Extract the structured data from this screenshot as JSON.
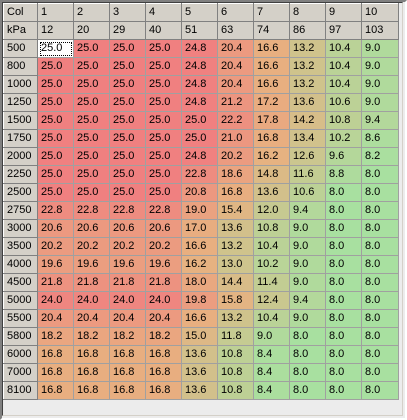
{
  "corner_labels": [
    "Col",
    "kPa"
  ],
  "columns": [
    {
      "col": "1",
      "kpa": "12"
    },
    {
      "col": "2",
      "kpa": "20"
    },
    {
      "col": "3",
      "kpa": "29"
    },
    {
      "col": "4",
      "kpa": "40"
    },
    {
      "col": "5",
      "kpa": "51"
    },
    {
      "col": "6",
      "kpa": "63"
    },
    {
      "col": "7",
      "kpa": "74"
    },
    {
      "col": "8",
      "kpa": "86"
    },
    {
      "col": "9",
      "kpa": "97"
    },
    {
      "col": "10",
      "kpa": "103"
    }
  ],
  "rows": [
    {
      "rpm": "500",
      "values": [
        "25.0",
        "25.0",
        "25.0",
        "25.0",
        "24.8",
        "20.4",
        "16.6",
        "13.2",
        "10.4",
        "9.0"
      ]
    },
    {
      "rpm": "800",
      "values": [
        "25.0",
        "25.0",
        "25.0",
        "25.0",
        "24.8",
        "20.4",
        "16.6",
        "13.2",
        "10.4",
        "9.0"
      ]
    },
    {
      "rpm": "1000",
      "values": [
        "25.0",
        "25.0",
        "25.0",
        "25.0",
        "24.8",
        "20.4",
        "16.6",
        "13.2",
        "10.4",
        "9.0"
      ]
    },
    {
      "rpm": "1250",
      "values": [
        "25.0",
        "25.0",
        "25.0",
        "25.0",
        "24.8",
        "21.2",
        "17.2",
        "13.6",
        "10.6",
        "9.0"
      ]
    },
    {
      "rpm": "1500",
      "values": [
        "25.0",
        "25.0",
        "25.0",
        "25.0",
        "25.0",
        "22.2",
        "17.8",
        "14.2",
        "10.8",
        "9.4"
      ]
    },
    {
      "rpm": "1750",
      "values": [
        "25.0",
        "25.0",
        "25.0",
        "25.0",
        "25.0",
        "21.0",
        "16.8",
        "13.4",
        "10.2",
        "8.6"
      ]
    },
    {
      "rpm": "2000",
      "values": [
        "25.0",
        "25.0",
        "25.0",
        "25.0",
        "24.8",
        "20.2",
        "16.2",
        "12.6",
        "9.6",
        "8.2"
      ]
    },
    {
      "rpm": "2250",
      "values": [
        "25.0",
        "25.0",
        "25.0",
        "25.0",
        "22.8",
        "18.6",
        "14.8",
        "11.6",
        "8.8",
        "8.0"
      ]
    },
    {
      "rpm": "2500",
      "values": [
        "25.0",
        "25.0",
        "25.0",
        "25.0",
        "20.8",
        "16.8",
        "13.6",
        "10.6",
        "8.0",
        "8.0"
      ]
    },
    {
      "rpm": "2750",
      "values": [
        "22.8",
        "22.8",
        "22.8",
        "22.8",
        "19.0",
        "15.4",
        "12.0",
        "9.4",
        "8.0",
        "8.0"
      ]
    },
    {
      "rpm": "3000",
      "values": [
        "20.6",
        "20.6",
        "20.6",
        "20.6",
        "17.0",
        "13.6",
        "10.8",
        "9.0",
        "8.0",
        "8.0"
      ]
    },
    {
      "rpm": "3500",
      "values": [
        "20.2",
        "20.2",
        "20.2",
        "20.2",
        "16.6",
        "13.2",
        "10.4",
        "9.0",
        "8.0",
        "8.0"
      ]
    },
    {
      "rpm": "4000",
      "values": [
        "19.6",
        "19.6",
        "19.6",
        "19.6",
        "16.2",
        "13.0",
        "10.2",
        "9.0",
        "8.0",
        "8.0"
      ]
    },
    {
      "rpm": "4500",
      "values": [
        "21.8",
        "21.8",
        "21.8",
        "21.8",
        "18.0",
        "14.4",
        "11.4",
        "9.0",
        "8.0",
        "8.0"
      ]
    },
    {
      "rpm": "5000",
      "values": [
        "24.0",
        "24.0",
        "24.0",
        "24.0",
        "19.8",
        "15.8",
        "12.4",
        "9.4",
        "8.0",
        "8.0"
      ]
    },
    {
      "rpm": "5500",
      "values": [
        "20.4",
        "20.4",
        "20.4",
        "20.4",
        "16.6",
        "13.2",
        "10.4",
        "9.0",
        "8.0",
        "8.0"
      ]
    },
    {
      "rpm": "5800",
      "values": [
        "18.2",
        "18.2",
        "18.2",
        "18.2",
        "15.0",
        "11.8",
        "9.0",
        "8.0",
        "8.0",
        "8.0"
      ]
    },
    {
      "rpm": "6000",
      "values": [
        "16.8",
        "16.8",
        "16.8",
        "16.8",
        "13.6",
        "10.8",
        "8.4",
        "8.0",
        "8.0",
        "8.0"
      ]
    },
    {
      "rpm": "7000",
      "values": [
        "16.8",
        "16.8",
        "16.8",
        "16.8",
        "13.6",
        "10.8",
        "8.4",
        "8.0",
        "8.0",
        "8.0"
      ]
    },
    {
      "rpm": "8100",
      "values": [
        "16.8",
        "16.8",
        "16.8",
        "16.8",
        "13.6",
        "10.8",
        "8.4",
        "8.0",
        "8.0",
        "8.0"
      ]
    }
  ],
  "selected_cell": {
    "row": 0,
    "col": 0
  },
  "colors": {
    "high": "#f08080",
    "low": "#a8e0a0",
    "header_bg": "#d4d0c8"
  },
  "color_scale": {
    "min": 8.0,
    "max": 25.0
  }
}
